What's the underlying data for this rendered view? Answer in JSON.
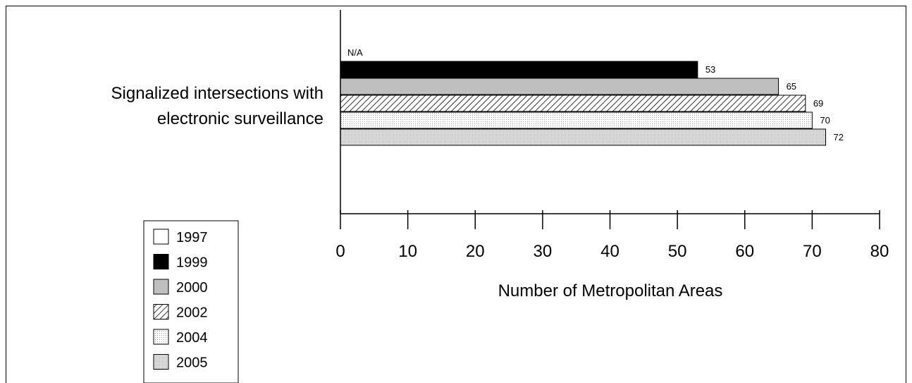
{
  "chart_data": {
    "type": "bar",
    "orientation": "horizontal",
    "categories": [
      "Signalized intersections with electronic surveillance"
    ],
    "category_label_lines": [
      "Signalized intersections with",
      "electronic surveillance"
    ],
    "series": [
      {
        "name": "1997",
        "values": [
          null
        ],
        "label": "N/A",
        "fill": "none"
      },
      {
        "name": "1999",
        "values": [
          53
        ],
        "label": "53",
        "fill": "solid-black"
      },
      {
        "name": "2000",
        "values": [
          65
        ],
        "label": "65",
        "fill": "solid-gray"
      },
      {
        "name": "2002",
        "values": [
          69
        ],
        "label": "69",
        "fill": "diagonal-hatch"
      },
      {
        "name": "2004",
        "values": [
          70
        ],
        "label": "70",
        "fill": "light-dots"
      },
      {
        "name": "2005",
        "values": [
          72
        ],
        "label": "72",
        "fill": "dense-dots"
      }
    ],
    "xlabel": "Number of Metropolitan Areas",
    "xlim": [
      0,
      80
    ],
    "xticks": [
      0,
      10,
      20,
      30,
      40,
      50,
      60,
      70,
      80
    ],
    "grid": false,
    "legend_position": "bottom-left",
    "colors": {
      "black": "#000000",
      "gray": "#bfbfbf",
      "white": "#ffffff"
    }
  }
}
